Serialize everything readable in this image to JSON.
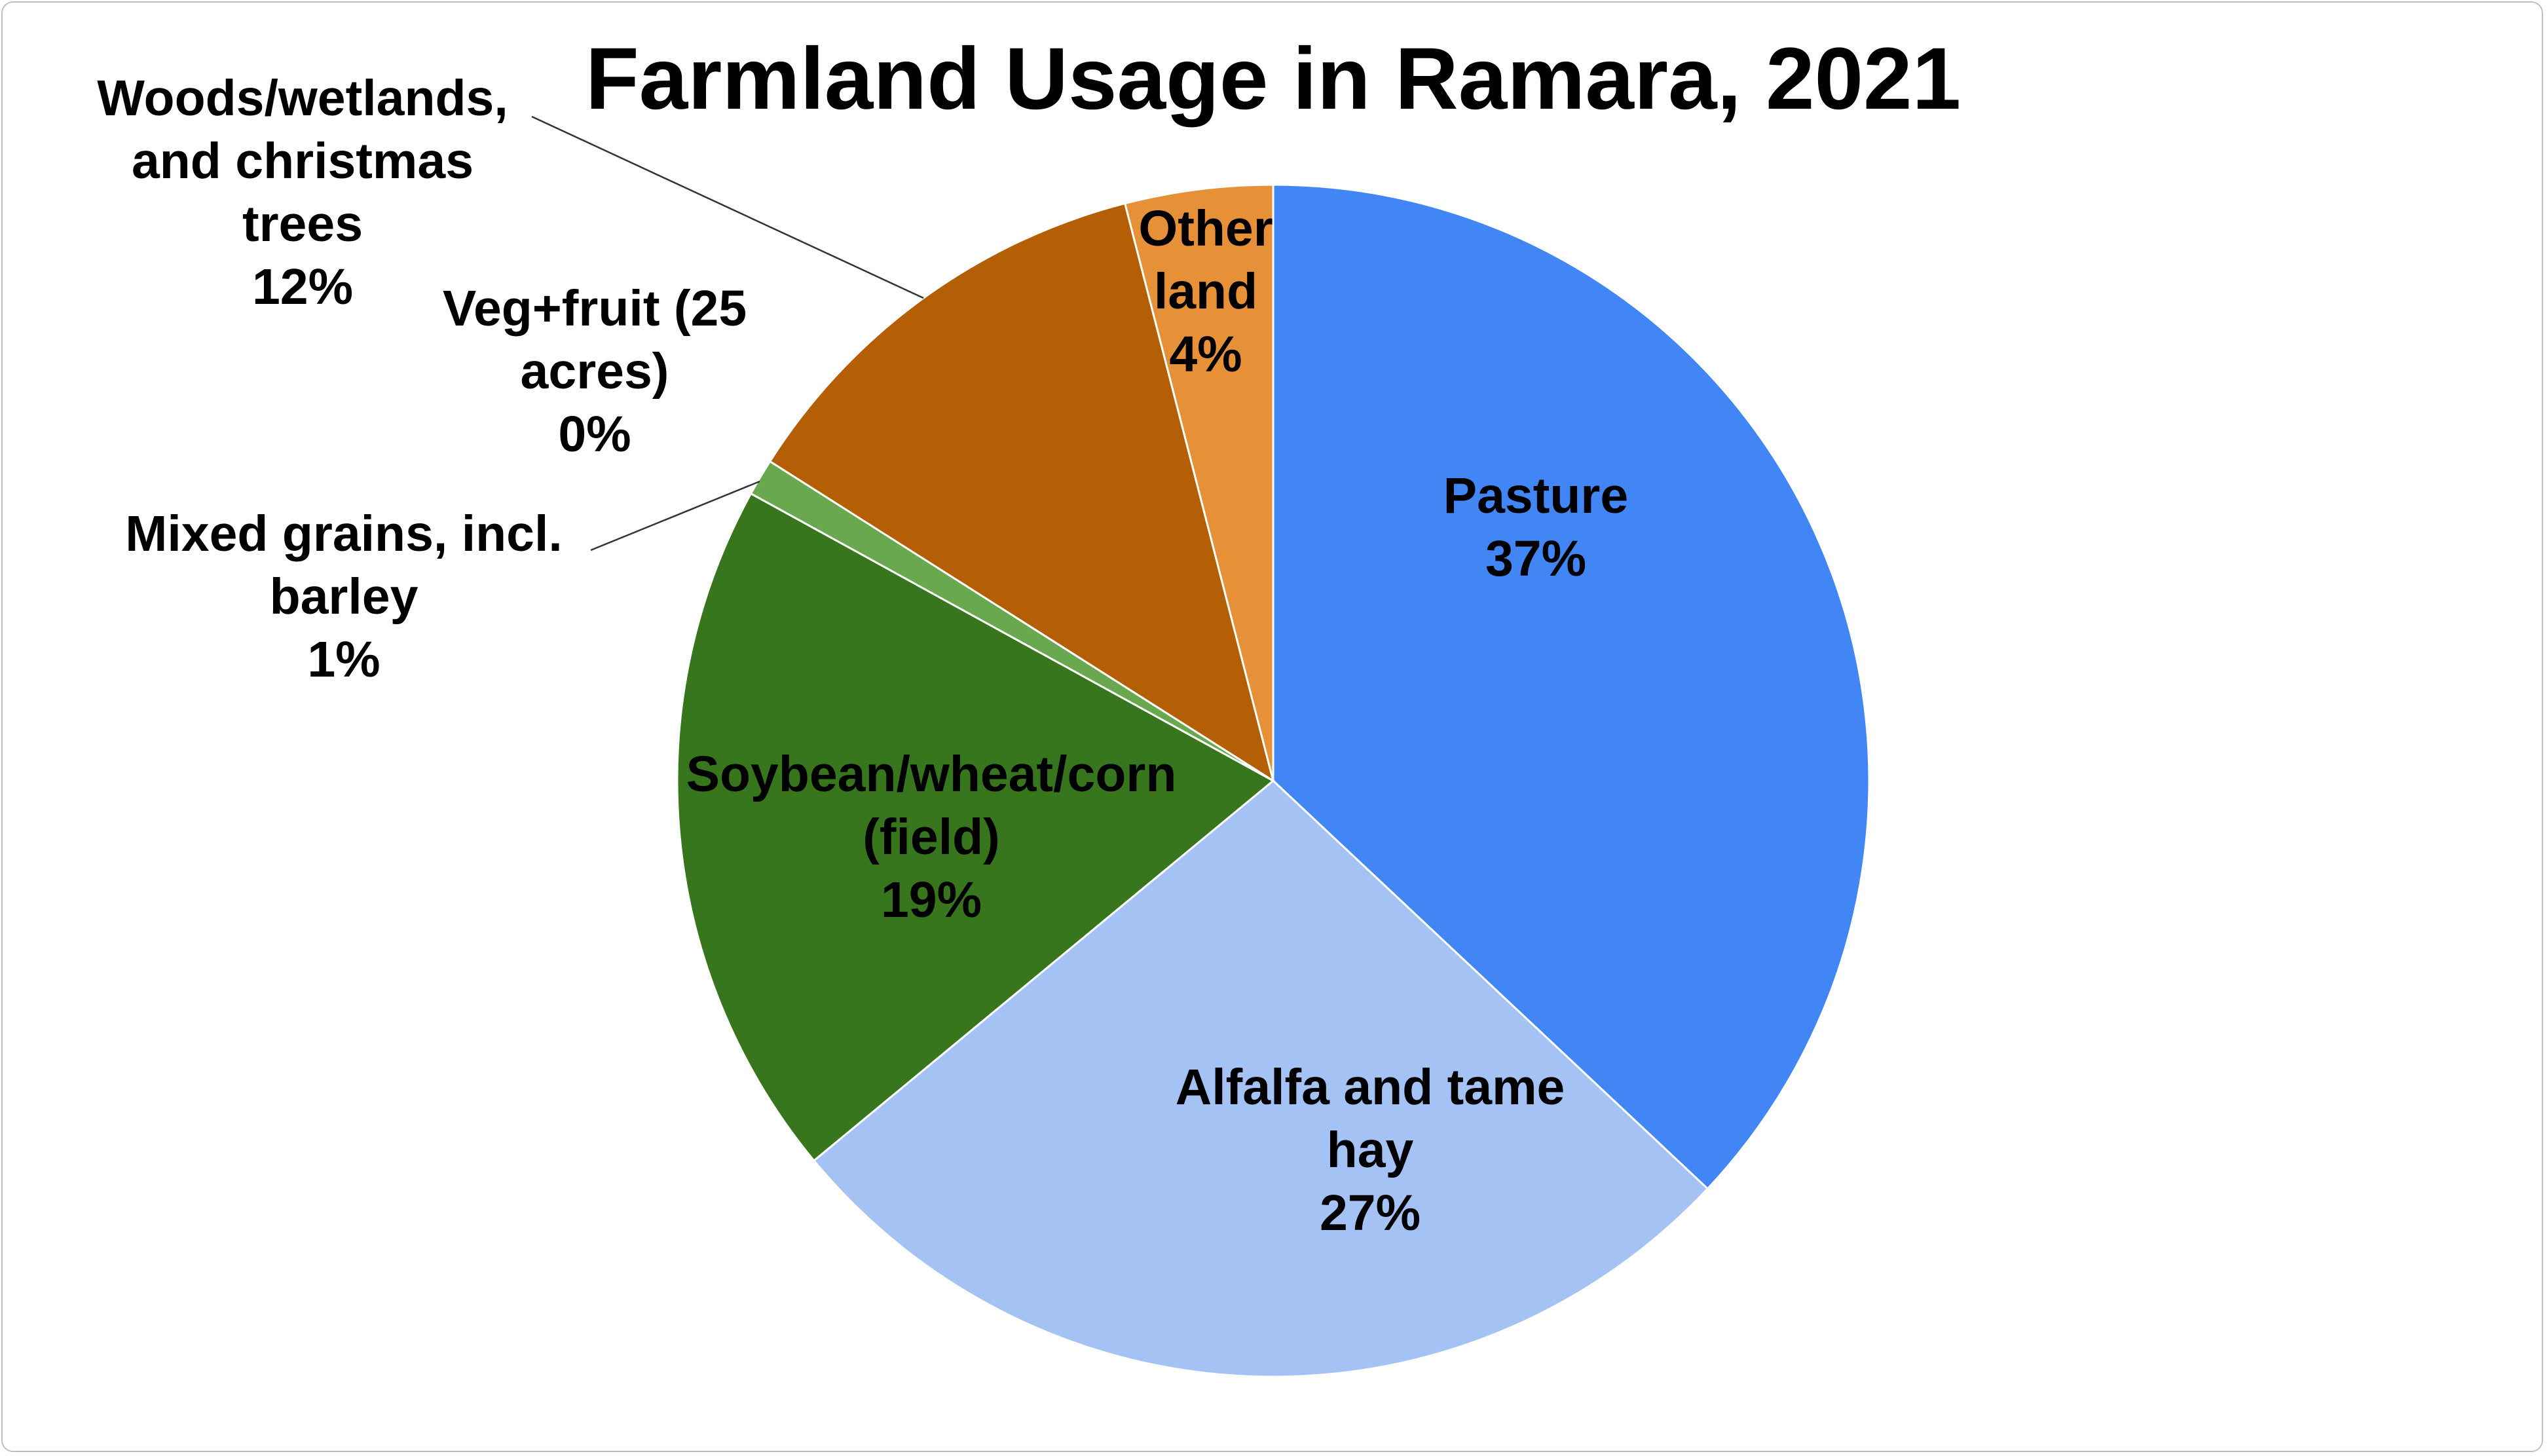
{
  "chart_data": {
    "type": "pie",
    "title": "Farmland Usage in Ramara, 2021",
    "start_angle_deg": 0,
    "direction": "clockwise",
    "legend": "none",
    "slices": [
      {
        "label": "Pasture",
        "value_pct": 37,
        "pct_label": "37%",
        "color": "#4285f4"
      },
      {
        "label": "Alfalfa and tame hay",
        "value_pct": 27,
        "pct_label": "27%",
        "color": "#a4c2f4"
      },
      {
        "label": "Soybean/wheat/corn (field)",
        "value_pct": 19,
        "pct_label": "19%",
        "color": "#38761d"
      },
      {
        "label": "Mixed grains, incl. barley",
        "value_pct": 1,
        "pct_label": "1%",
        "color": "#6aa84f"
      },
      {
        "label": "Veg+fruit (25 acres)",
        "value_pct": 0,
        "pct_label": "0%",
        "color": "#93c47d"
      },
      {
        "label": "Woods/wetlands, and christmas trees",
        "value_pct": 12,
        "pct_label": "12%",
        "color": "#b45f06"
      },
      {
        "label": "Other land",
        "value_pct": 4,
        "pct_label": "4%",
        "color": "#e69138"
      }
    ]
  }
}
